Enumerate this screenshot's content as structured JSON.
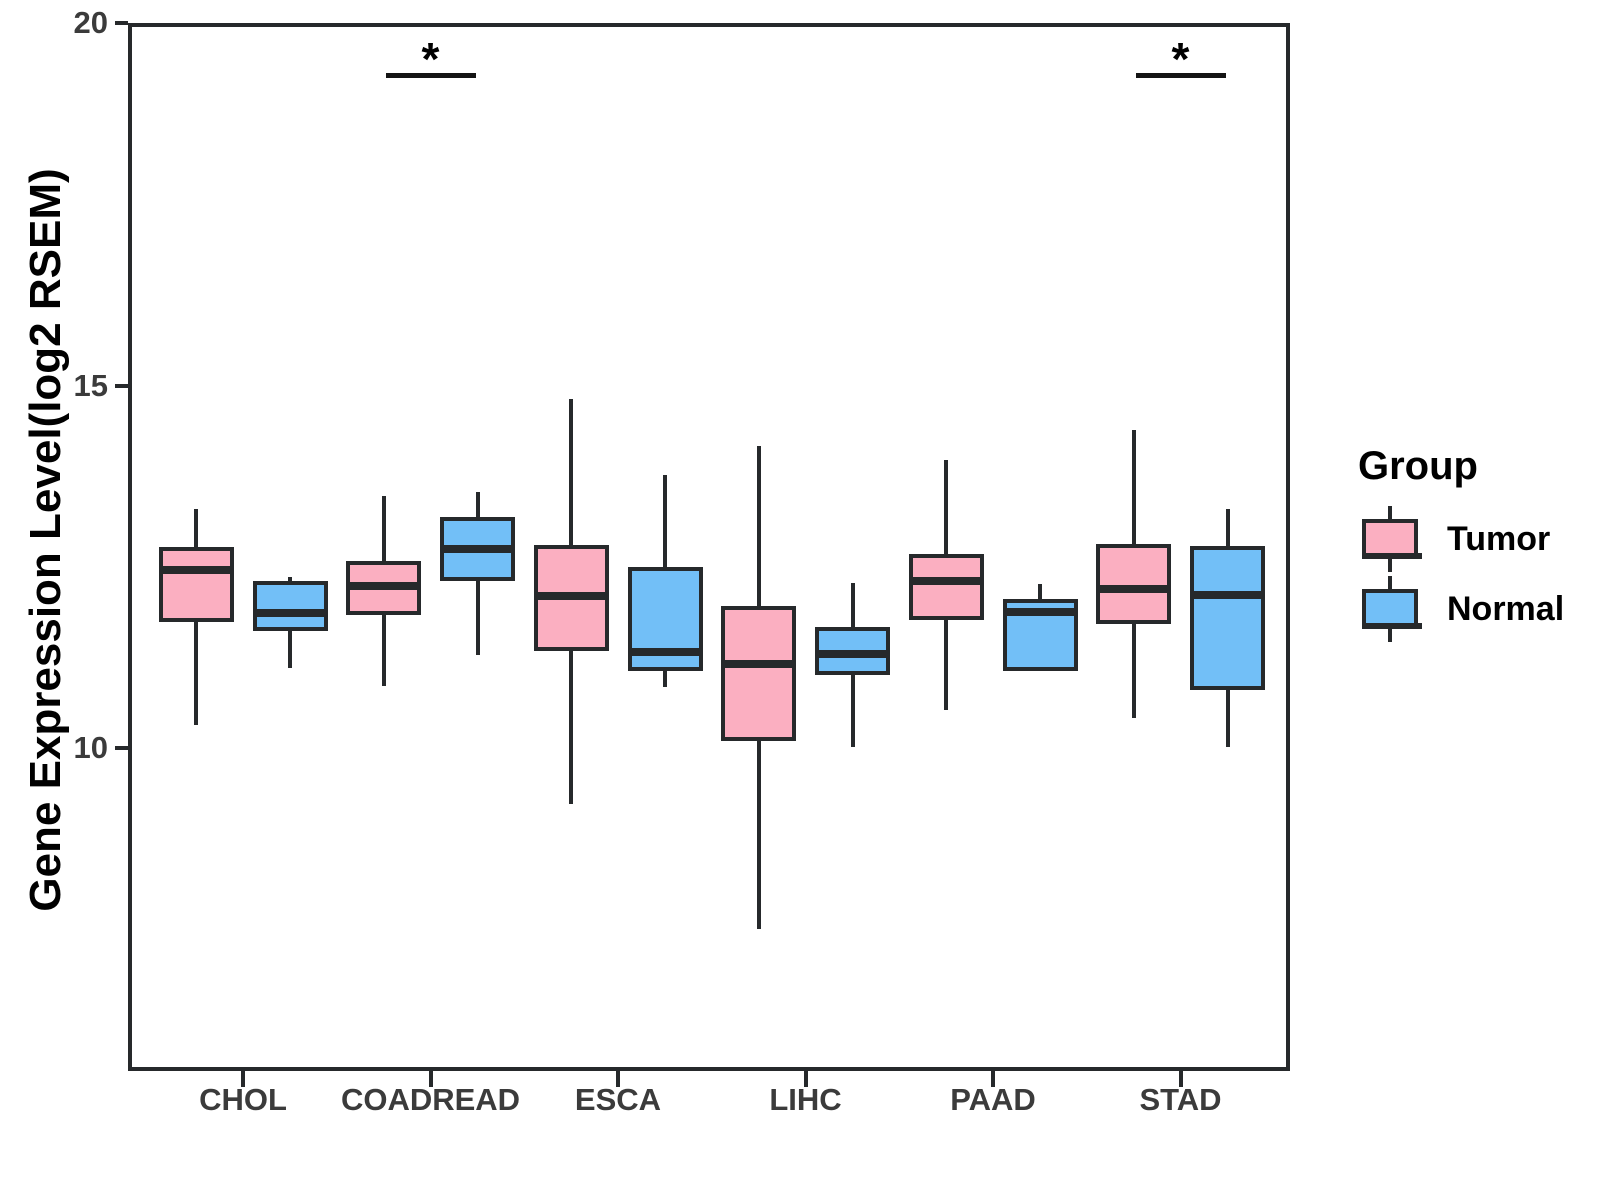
{
  "chart_data": {
    "type": "box",
    "title": "",
    "xlabel": "",
    "ylabel": "Gene Expression Level(log2 RSEM)",
    "ylim": [
      5.5,
      20
    ],
    "yticks": [
      20,
      15,
      10
    ],
    "grid": false,
    "categories": [
      "CHOL",
      "COADREAD",
      "ESCA",
      "LIHC",
      "PAAD",
      "STAD"
    ],
    "series": [
      {
        "name": "Tumor",
        "color": "#FBAFC1",
        "boxes": [
          {
            "min": 10.32,
            "q1": 11.74,
            "median": 12.45,
            "q3": 12.77,
            "max": 13.29
          },
          {
            "min": 10.85,
            "q1": 11.84,
            "median": 12.24,
            "q3": 12.58,
            "max": 13.47
          },
          {
            "min": 9.23,
            "q1": 11.34,
            "median": 12.1,
            "q3": 12.8,
            "max": 14.81
          },
          {
            "min": 7.51,
            "q1": 10.09,
            "median": 11.16,
            "q3": 11.96,
            "max": 14.17
          },
          {
            "min": 10.52,
            "q1": 11.77,
            "median": 12.31,
            "q3": 12.68,
            "max": 13.97
          },
          {
            "min": 10.41,
            "q1": 11.71,
            "median": 12.2,
            "q3": 12.81,
            "max": 14.38
          }
        ]
      },
      {
        "name": "Normal",
        "color": "#72BFF7",
        "boxes": [
          {
            "min": 11.1,
            "q1": 11.62,
            "median": 11.86,
            "q3": 12.31,
            "max": 12.36
          },
          {
            "min": 11.28,
            "q1": 12.31,
            "median": 12.74,
            "q3": 13.18,
            "max": 13.53
          },
          {
            "min": 10.84,
            "q1": 11.06,
            "median": 11.32,
            "q3": 12.49,
            "max": 13.77
          },
          {
            "min": 10.02,
            "q1": 11.0,
            "median": 11.3,
            "q3": 11.67,
            "max": 12.28
          },
          {
            "min": 11.06,
            "q1": 11.06,
            "median": 11.87,
            "q3": 12.05,
            "max": 12.26
          },
          {
            "min": 10.02,
            "q1": 10.8,
            "median": 12.11,
            "q3": 12.78,
            "max": 13.3
          }
        ]
      }
    ],
    "annotations": [
      {
        "category": "COADREAD",
        "label": "*"
      },
      {
        "category": "STAD",
        "label": "*"
      }
    ],
    "legend": {
      "title": "Group",
      "position": "right"
    },
    "colors": {
      "stroke": "#26292B",
      "tick_text": "#3B3B3B",
      "title_text": "#000000"
    }
  }
}
